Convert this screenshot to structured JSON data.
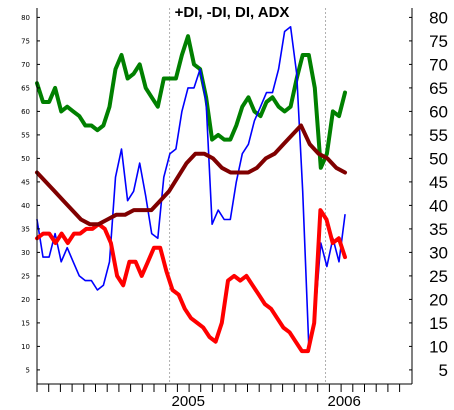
{
  "chart_data": {
    "type": "line",
    "title": "+DI, -DI, DI, ADX",
    "ylim": [
      2,
      82
    ],
    "y_ticks": [
      5,
      10,
      15,
      20,
      25,
      30,
      35,
      40,
      45,
      50,
      55,
      60,
      65,
      70,
      75,
      80
    ],
    "x_tick_labels": [
      {
        "label": "2005",
        "at": 34
      },
      {
        "label": "2006",
        "at": 74
      }
    ],
    "grid": "vertical dotted at year boundaries",
    "n_points": 80,
    "series": [
      {
        "color": "#008000",
        "values": [
          66,
          62,
          62,
          65,
          60,
          61,
          60,
          59,
          57,
          57,
          56,
          57,
          61,
          69,
          72,
          67,
          68,
          70,
          65,
          63,
          61,
          67,
          67,
          67,
          72,
          76,
          70,
          69,
          63,
          54,
          55,
          54,
          54,
          57,
          61,
          63,
          60,
          59,
          62,
          63,
          61,
          60,
          61,
          67,
          72,
          72,
          65,
          48,
          51,
          60,
          59,
          64
        ]
      },
      {
        "color": "#0000ff",
        "values": [
          37,
          29,
          29,
          34,
          28,
          31,
          28,
          25,
          24,
          24,
          22,
          23,
          28,
          46,
          52,
          41,
          43,
          49,
          42,
          34,
          33,
          46,
          51,
          52,
          60,
          65,
          65,
          69,
          62,
          36,
          39,
          37,
          37,
          45,
          51,
          53,
          58,
          61,
          64,
          64,
          69,
          77,
          78,
          68,
          43,
          10,
          16,
          32,
          27,
          33,
          28,
          38
        ]
      },
      {
        "color": "#ff0000",
        "values": [
          33,
          34,
          34,
          32,
          34,
          32,
          34,
          34,
          35,
          35,
          36,
          35,
          32,
          25,
          23,
          28,
          28,
          25,
          28,
          31,
          31,
          26,
          22,
          21,
          18,
          16,
          15,
          14,
          12,
          11,
          15,
          24,
          25,
          24,
          25,
          23,
          21,
          19,
          18,
          16,
          14,
          13,
          11,
          9,
          9,
          15,
          39,
          37,
          32,
          33,
          29
        ]
      },
      {
        "color": "#800000",
        "values": [
          47,
          45,
          43,
          41,
          39,
          37,
          36,
          36,
          37,
          38,
          38,
          39,
          39,
          39,
          41,
          43,
          46,
          49,
          51,
          51,
          50,
          48,
          47,
          47,
          47,
          48,
          50,
          51,
          53,
          55,
          57,
          53,
          51,
          50,
          48,
          47
        ]
      }
    ]
  }
}
